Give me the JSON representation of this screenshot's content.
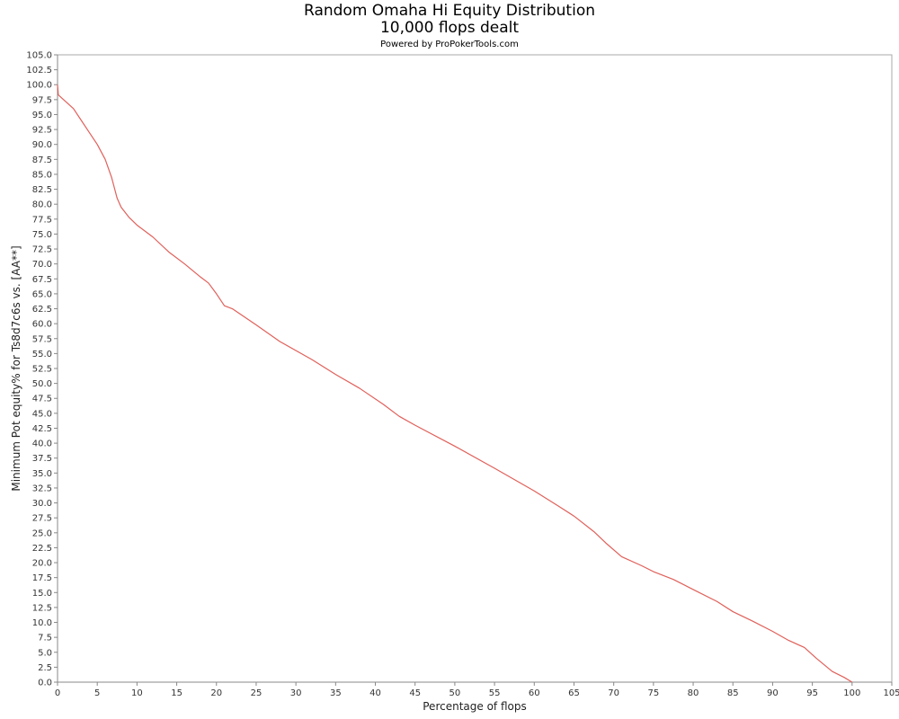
{
  "chart_data": {
    "type": "line",
    "title": "Random Omaha Hi Equity Distribution",
    "title_line2": "10,000 flops dealt",
    "subtitle": "Powered by ProPokerTools.com",
    "xlabel": "Percentage of flops",
    "ylabel": "Minimum Pot equity% for Ts8d7c6s vs. [AA**]",
    "xlim": [
      0,
      105
    ],
    "ylim": [
      0,
      105
    ],
    "x_ticks": [
      0,
      5,
      10,
      15,
      20,
      25,
      30,
      35,
      40,
      45,
      50,
      55,
      60,
      65,
      70,
      75,
      80,
      85,
      90,
      95,
      100,
      105
    ],
    "y_ticks": [
      "0.0",
      "2.5",
      "5.0",
      "7.5",
      "10.0",
      "12.5",
      "15.0",
      "17.5",
      "20.0",
      "22.5",
      "25.0",
      "27.5",
      "30.0",
      "32.5",
      "35.0",
      "37.5",
      "40.0",
      "42.5",
      "45.0",
      "47.5",
      "50.0",
      "52.5",
      "55.0",
      "57.5",
      "60.0",
      "62.5",
      "65.0",
      "67.5",
      "70.0",
      "72.5",
      "75.0",
      "77.5",
      "80.0",
      "82.5",
      "85.0",
      "87.5",
      "90.0",
      "92.5",
      "95.0",
      "97.5",
      "100.0",
      "102.5",
      "105.0"
    ],
    "grid": true,
    "line_color": "#e0605a",
    "series": [
      {
        "name": "",
        "x": [
          0,
          0.1,
          0.5,
          1,
          2,
          3,
          4,
          5,
          6,
          6.8,
          7.5,
          8,
          9,
          10,
          12,
          14,
          16,
          18,
          19,
          20,
          21,
          22,
          25,
          28,
          32,
          35,
          38,
          41,
          43,
          45,
          50,
          55,
          60,
          63,
          65,
          67.5,
          69,
          71,
          73.5,
          75,
          77.5,
          80,
          83,
          85,
          87.5,
          90,
          92,
          94,
          95.5,
          97.5,
          99,
          100
        ],
        "y": [
          100,
          98.3,
          97.8,
          97.2,
          96.0,
          94.0,
          92.0,
          90.0,
          87.5,
          84.5,
          81.0,
          79.5,
          77.8,
          76.5,
          74.5,
          72.0,
          70.0,
          67.8,
          66.8,
          65.0,
          63.0,
          62.5,
          59.8,
          57.0,
          54.0,
          51.5,
          49.2,
          46.5,
          44.5,
          43.0,
          39.5,
          35.8,
          32.0,
          29.5,
          27.8,
          25.2,
          23.3,
          21.0,
          19.5,
          18.5,
          17.2,
          15.5,
          13.5,
          11.8,
          10.2,
          8.5,
          7.0,
          5.8,
          4.0,
          1.8,
          0.8,
          0.0
        ]
      }
    ]
  }
}
